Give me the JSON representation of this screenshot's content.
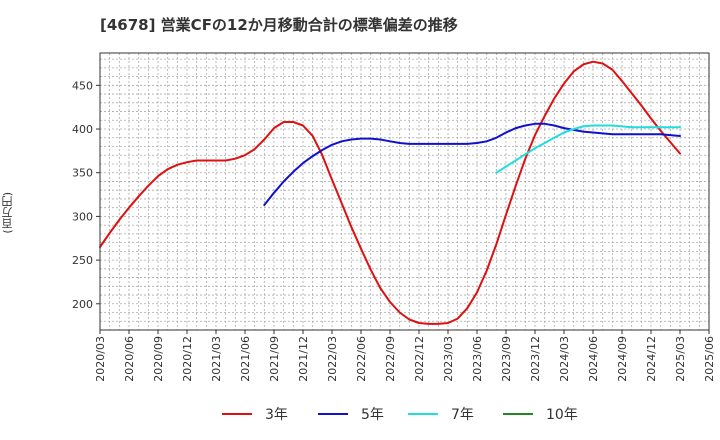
{
  "chart_data": {
    "type": "line",
    "title": "[4678]  営業CFの12か月移動合計の標準偏差の推移",
    "ylabel": "(百万円)",
    "xlabel": "",
    "ylim": [
      170,
      487
    ],
    "yticks": [
      200,
      250,
      300,
      350,
      400,
      450
    ],
    "xlim": [
      "2020-03",
      "2025-06"
    ],
    "x_tick_labels": [
      "2020/03",
      "2020/06",
      "2020/09",
      "2020/12",
      "2021/03",
      "2021/06",
      "2021/09",
      "2021/12",
      "2022/03",
      "2022/06",
      "2022/09",
      "2022/12",
      "2023/03",
      "2023/06",
      "2023/09",
      "2023/12",
      "2024/03",
      "2024/06",
      "2024/09",
      "2024/12",
      "2025/03",
      "2025/06"
    ],
    "grid": true,
    "legend_position": "bottom",
    "series": [
      {
        "name": "3年",
        "color": "#dd1111",
        "points": [
          [
            "2020-03",
            265
          ],
          [
            "2020-04",
            281
          ],
          [
            "2020-05",
            296
          ],
          [
            "2020-06",
            310
          ],
          [
            "2020-07",
            323
          ],
          [
            "2020-08",
            335
          ],
          [
            "2020-09",
            346
          ],
          [
            "2020-10",
            354
          ],
          [
            "2020-11",
            359
          ],
          [
            "2020-12",
            362
          ],
          [
            "2021-01",
            364
          ],
          [
            "2021-02",
            364
          ],
          [
            "2021-03",
            364
          ],
          [
            "2021-04",
            364
          ],
          [
            "2021-05",
            366
          ],
          [
            "2021-06",
            370
          ],
          [
            "2021-07",
            377
          ],
          [
            "2021-08",
            388
          ],
          [
            "2021-09",
            401
          ],
          [
            "2021-10",
            408
          ],
          [
            "2021-11",
            408
          ],
          [
            "2021-12",
            404
          ],
          [
            "2022-01",
            392
          ],
          [
            "2022-02",
            370
          ],
          [
            "2022-03",
            342
          ],
          [
            "2022-04",
            315
          ],
          [
            "2022-05",
            288
          ],
          [
            "2022-06",
            263
          ],
          [
            "2022-07",
            239
          ],
          [
            "2022-08",
            218
          ],
          [
            "2022-09",
            202
          ],
          [
            "2022-10",
            190
          ],
          [
            "2022-11",
            182
          ],
          [
            "2022-12",
            178
          ],
          [
            "2023-01",
            177
          ],
          [
            "2023-02",
            177
          ],
          [
            "2023-03",
            178
          ],
          [
            "2023-04",
            183
          ],
          [
            "2023-05",
            195
          ],
          [
            "2023-06",
            213
          ],
          [
            "2023-07",
            238
          ],
          [
            "2023-08",
            268
          ],
          [
            "2023-09",
            302
          ],
          [
            "2023-10",
            335
          ],
          [
            "2023-11",
            366
          ],
          [
            "2023-12",
            393
          ],
          [
            "2024-01",
            415
          ],
          [
            "2024-02",
            435
          ],
          [
            "2024-03",
            452
          ],
          [
            "2024-04",
            466
          ],
          [
            "2024-05",
            474
          ],
          [
            "2024-06",
            477
          ],
          [
            "2024-07",
            475
          ],
          [
            "2024-08",
            468
          ],
          [
            "2024-09",
            455
          ],
          [
            "2024-10",
            441
          ],
          [
            "2024-11",
            427
          ],
          [
            "2024-12",
            412
          ],
          [
            "2025-01",
            398
          ],
          [
            "2025-02",
            385
          ],
          [
            "2025-03",
            372
          ]
        ]
      },
      {
        "name": "5年",
        "color": "#1111cc",
        "points": [
          [
            "2021-08",
            313
          ],
          [
            "2021-09",
            327
          ],
          [
            "2021-10",
            340
          ],
          [
            "2021-11",
            351
          ],
          [
            "2021-12",
            361
          ],
          [
            "2022-01",
            369
          ],
          [
            "2022-02",
            376
          ],
          [
            "2022-03",
            382
          ],
          [
            "2022-04",
            386
          ],
          [
            "2022-05",
            388
          ],
          [
            "2022-06",
            389
          ],
          [
            "2022-07",
            389
          ],
          [
            "2022-08",
            388
          ],
          [
            "2022-09",
            386
          ],
          [
            "2022-10",
            384
          ],
          [
            "2022-11",
            383
          ],
          [
            "2022-12",
            383
          ],
          [
            "2023-01",
            383
          ],
          [
            "2023-02",
            383
          ],
          [
            "2023-03",
            383
          ],
          [
            "2023-04",
            383
          ],
          [
            "2023-05",
            383
          ],
          [
            "2023-06",
            384
          ],
          [
            "2023-07",
            386
          ],
          [
            "2023-08",
            390
          ],
          [
            "2023-09",
            396
          ],
          [
            "2023-10",
            401
          ],
          [
            "2023-11",
            404
          ],
          [
            "2023-12",
            406
          ],
          [
            "2024-01",
            406
          ],
          [
            "2024-02",
            404
          ],
          [
            "2024-03",
            401
          ],
          [
            "2024-04",
            399
          ],
          [
            "2024-05",
            397
          ],
          [
            "2024-06",
            396
          ],
          [
            "2024-07",
            395
          ],
          [
            "2024-08",
            394
          ],
          [
            "2024-09",
            394
          ],
          [
            "2024-10",
            394
          ],
          [
            "2024-11",
            394
          ],
          [
            "2024-12",
            394
          ],
          [
            "2025-01",
            394
          ],
          [
            "2025-02",
            393
          ],
          [
            "2025-03",
            392
          ]
        ]
      },
      {
        "name": "7年",
        "color": "#22dddd",
        "points": [
          [
            "2023-08",
            350
          ],
          [
            "2023-09",
            357
          ],
          [
            "2023-10",
            364
          ],
          [
            "2023-11",
            371
          ],
          [
            "2023-12",
            378
          ],
          [
            "2024-01",
            384
          ],
          [
            "2024-02",
            390
          ],
          [
            "2024-03",
            396
          ],
          [
            "2024-04",
            400
          ],
          [
            "2024-05",
            403
          ],
          [
            "2024-06",
            404
          ],
          [
            "2024-07",
            404
          ],
          [
            "2024-08",
            404
          ],
          [
            "2024-09",
            403
          ],
          [
            "2024-10",
            402
          ],
          [
            "2024-11",
            402
          ],
          [
            "2024-12",
            402
          ],
          [
            "2025-01",
            402
          ],
          [
            "2025-02",
            402
          ],
          [
            "2025-03",
            402
          ]
        ]
      },
      {
        "name": "10年",
        "color": "#228822",
        "points": []
      }
    ]
  }
}
